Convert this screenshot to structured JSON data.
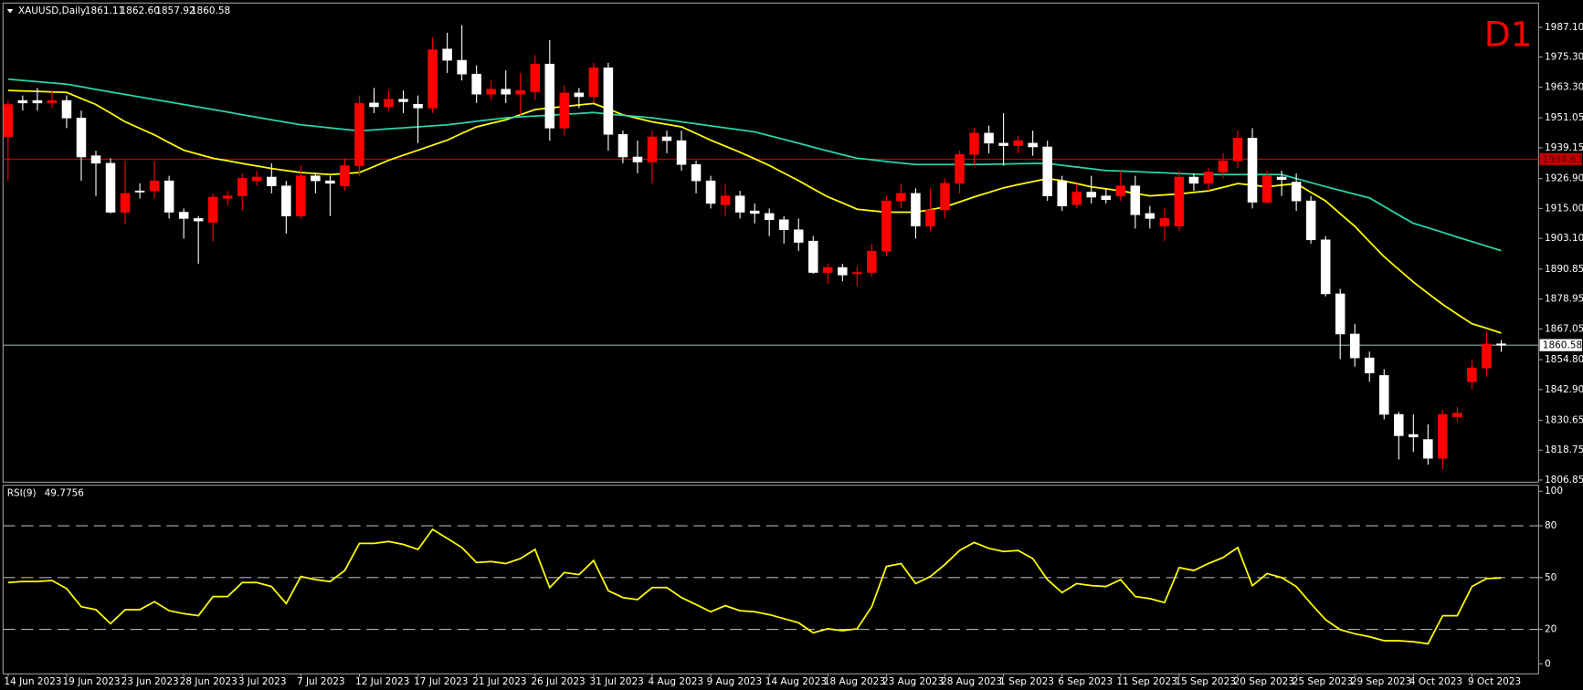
{
  "chart_data": [
    {
      "type": "candlestick",
      "title": "XAUUSD,Daily",
      "last_labels": [
        "1861.11",
        "1862.60",
        "1857.92",
        "1860.58"
      ],
      "timeframe_label": "D1",
      "categories": [
        "14 Jun 2023",
        null,
        null,
        null,
        "19 Jun 2023",
        null,
        null,
        null,
        "23 Jun 2023",
        null,
        null,
        null,
        "28 Jun 2023",
        null,
        null,
        null,
        "3 Jul 2023",
        null,
        null,
        null,
        "7 Jul 2023",
        null,
        null,
        null,
        "12 Jul 2023",
        null,
        null,
        null,
        "17 Jul 2023",
        null,
        null,
        null,
        "21 Jul 2023",
        null,
        null,
        null,
        "26 Jul 2023",
        null,
        null,
        null,
        "31 Jul 2023",
        null,
        null,
        null,
        "4 Aug 2023",
        null,
        null,
        null,
        "9 Aug 2023",
        null,
        null,
        null,
        "14 Aug 2023",
        null,
        null,
        null,
        "18 Aug 2023",
        null,
        null,
        null,
        "23 Aug 2023",
        null,
        null,
        null,
        "28 Aug 2023",
        null,
        null,
        null,
        "1 Sep 2023",
        null,
        null,
        null,
        "6 Sep 2023",
        null,
        null,
        null,
        "11 Sep 2023",
        null,
        null,
        null,
        "15 Sep 2023",
        null,
        null,
        null,
        "20 Sep 2023",
        null,
        null,
        null,
        "25 Sep 2023",
        null,
        null,
        null,
        "29 Sep 2023",
        null,
        null,
        null,
        "4 Oct 2023",
        null,
        null,
        null,
        "9 Oct 2023",
        null,
        null
      ],
      "open": [
        1943.5,
        1958,
        1958,
        1957,
        1958,
        1951,
        1936,
        1933,
        1913.5,
        1922,
        1922,
        1926,
        1913.5,
        1911,
        1909.5,
        1919,
        1920,
        1926,
        1927.5,
        1924,
        1912,
        1928,
        1926,
        1924,
        1932,
        1957,
        1955.5,
        1958.5,
        1956.5,
        1955,
        1978.5,
        1974,
        1968.5,
        1960.5,
        1962.5,
        1960.5,
        1961.5,
        1972.5,
        1947,
        1961,
        1959.5,
        1971,
        1944.5,
        1935.5,
        1933.5,
        1943.5,
        1942,
        1932.5,
        1926,
        1916.5,
        1920,
        1914,
        1913,
        1910.5,
        1906.5,
        1902,
        1889.5,
        1891.5,
        1889,
        1889.5,
        1898,
        1918,
        1921,
        1908,
        1914.5,
        1925,
        1936.5,
        1945,
        1941,
        1940,
        1941,
        1939.5,
        1926,
        1916.5,
        1921.5,
        1920,
        1920,
        1924,
        1913,
        1908,
        1908,
        1927.5,
        1925,
        1929.5,
        1934,
        1943,
        1917.5,
        1927.5,
        1925.5,
        1918,
        1902.5,
        1881,
        1865,
        1855.5,
        1848.5,
        1833,
        1825,
        1823,
        1815.5,
        1832,
        1846,
        1851.5,
        1861.11
      ],
      "high": [
        1958,
        1960,
        1963,
        1962,
        1960,
        1954,
        1938,
        1935,
        1934,
        1925,
        1934,
        1928,
        1915,
        1912,
        1921,
        1922,
        1929,
        1930,
        1933,
        1926,
        1932,
        1929,
        1928,
        1935,
        1960,
        1963,
        1962,
        1962,
        1960,
        1983,
        1985,
        1988,
        1972,
        1966,
        1970,
        1969,
        1976,
        1982,
        1964,
        1963,
        1973,
        1973,
        1946,
        1942,
        1946,
        1946,
        1946,
        1934,
        1928,
        1925,
        1922,
        1917,
        1915,
        1912,
        1911,
        1904,
        1893,
        1893,
        1892,
        1901,
        1920,
        1925,
        1923,
        1923,
        1927,
        1938,
        1947,
        1948,
        1953,
        1944,
        1946,
        1942,
        1928,
        1925,
        1928,
        1923,
        1930,
        1928,
        1916,
        1915,
        1930,
        1929,
        1931,
        1937,
        1946,
        1947,
        1930,
        1930,
        1929,
        1920,
        1904,
        1883,
        1869,
        1858,
        1851,
        1834,
        1833,
        1829,
        1835,
        1836,
        1855,
        1866,
        1862.6
      ],
      "low": [
        1926,
        1954,
        1954,
        1955,
        1947,
        1926,
        1920,
        1913,
        1909,
        1919,
        1919,
        1911,
        1903,
        1893,
        1902,
        1916,
        1914,
        1924,
        1921,
        1905,
        1911,
        1921,
        1912,
        1922,
        1928,
        1953,
        1954,
        1953,
        1941,
        1953,
        1969,
        1966,
        1957,
        1958,
        1957,
        1952,
        1958,
        1942,
        1944,
        1955,
        1957,
        1938,
        1933,
        1929,
        1925,
        1937,
        1930,
        1921,
        1915,
        1912,
        1911,
        1909,
        1904,
        1901,
        1898,
        1889,
        1885,
        1886,
        1884,
        1888,
        1896,
        1915,
        1903,
        1906,
        1911,
        1921,
        1932,
        1937,
        1932,
        1937,
        1936,
        1918,
        1914,
        1915,
        1917,
        1917,
        1918,
        1907,
        1907,
        1902,
        1906,
        1922,
        1922,
        1927,
        1931,
        1915,
        1917,
        1920,
        1914,
        1901,
        1880,
        1855,
        1852,
        1846,
        1831,
        1815,
        1818,
        1813,
        1811,
        1830,
        1843,
        1848,
        1857.92
      ],
      "close": [
        1956.4,
        1957,
        1957,
        1958,
        1951,
        1935.5,
        1933,
        1913.5,
        1921,
        1921.5,
        1926,
        1913.5,
        1911,
        1910,
        1919.5,
        1920,
        1927,
        1927.5,
        1924,
        1912,
        1928,
        1926,
        1925,
        1932,
        1956.8,
        1955.5,
        1958.5,
        1957.5,
        1955,
        1978.2,
        1974,
        1968.5,
        1960.5,
        1962.5,
        1960.5,
        1962,
        1972.5,
        1947,
        1961,
        1959.5,
        1971,
        1944.5,
        1935.5,
        1933.5,
        1943.5,
        1942,
        1932.5,
        1926,
        1917,
        1920,
        1913.5,
        1913,
        1910.5,
        1906.5,
        1901.5,
        1889.5,
        1891.5,
        1888.5,
        1889.5,
        1898,
        1918,
        1921,
        1908,
        1914.5,
        1925,
        1936.5,
        1945,
        1941,
        1940,
        1942,
        1939.5,
        1920,
        1916,
        1921.5,
        1919.5,
        1918.5,
        1924,
        1912.5,
        1911,
        1911,
        1927.5,
        1925,
        1929.5,
        1934,
        1943,
        1917.5,
        1928,
        1926.5,
        1918,
        1902.5,
        1881,
        1865,
        1855.5,
        1849.5,
        1833,
        1824.5,
        1824,
        1815.5,
        1833,
        1833.5,
        1851.5,
        1861,
        1860.58
      ],
      "up_color": "#ff0000",
      "down_color": "#ffffff",
      "overlays": [
        {
          "color": "#ffff00",
          "values": [
            1962.0,
            1961.8,
            1961.6,
            1961.4,
            1961.2,
            1958.8,
            1956.4,
            1953.0,
            1949.5,
            1946.9,
            1944.3,
            1941.2,
            1938.2,
            1936.6,
            1935.0,
            1934.0,
            1932.9,
            1931.9,
            1930.9,
            1930.1,
            1929.3,
            1928.9,
            1928.5,
            1928.9,
            1929.3,
            1931.7,
            1934.2,
            1936.2,
            1938.2,
            1940.2,
            1942.2,
            1944.9,
            1947.5,
            1948.9,
            1950.3,
            1952.3,
            1954.4,
            1955.0,
            1955.6,
            1956.2,
            1956.8,
            1954.6,
            1952.3,
            1950.9,
            1949.5,
            1948.5,
            1947.5,
            1944.9,
            1942.2,
            1939.8,
            1937.4,
            1934.8,
            1932.1,
            1929.1,
            1926.1,
            1922.8,
            1919.6,
            1917.2,
            1914.7,
            1914.1,
            1913.5,
            1913.5,
            1913.5,
            1914.5,
            1915.6,
            1917.6,
            1919.6,
            1921.4,
            1923.2,
            1924.5,
            1925.7,
            1926.9,
            1926.1,
            1924.9,
            1923.6,
            1922.8,
            1922.0,
            1921.0,
            1920.0,
            1920.4,
            1920.8,
            1921.4,
            1922.0,
            1923.4,
            1924.9,
            1924.3,
            1923.6,
            1924.3,
            1924.9,
            1921.4,
            1918.0,
            1912.9,
            1907.9,
            1901.8,
            1895.8,
            1890.7,
            1885.7,
            1881.2,
            1876.8,
            1872.9,
            1869.1,
            1867.3,
            1865.4
          ]
        },
        {
          "color": "#2ad4a8",
          "values": [
            1966.5,
            1966.0,
            1965.5,
            1965.0,
            1964.5,
            1963.5,
            1962.4,
            1961.4,
            1960.4,
            1959.4,
            1958.4,
            1957.4,
            1956.4,
            1955.4,
            1954.4,
            1953.4,
            1952.3,
            1951.3,
            1950.3,
            1949.3,
            1948.3,
            1947.7,
            1947.1,
            1946.5,
            1945.9,
            1946.3,
            1946.7,
            1947.1,
            1947.5,
            1947.9,
            1948.3,
            1949.0,
            1949.7,
            1950.4,
            1951.1,
            1951.5,
            1951.8,
            1952.1,
            1952.5,
            1952.8,
            1953.2,
            1952.6,
            1952.1,
            1951.6,
            1951.1,
            1950.3,
            1949.5,
            1948.7,
            1947.9,
            1947.1,
            1946.3,
            1945.5,
            1944.0,
            1942.5,
            1941.0,
            1939.4,
            1937.9,
            1936.4,
            1935.0,
            1934.4,
            1933.7,
            1933.1,
            1932.5,
            1932.5,
            1932.5,
            1932.5,
            1932.5,
            1932.6,
            1932.7,
            1932.8,
            1932.9,
            1932.9,
            1932.2,
            1931.5,
            1930.8,
            1930.1,
            1929.9,
            1929.7,
            1929.4,
            1929.2,
            1928.9,
            1928.7,
            1928.5,
            1928.5,
            1928.5,
            1928.5,
            1928.5,
            1928.5,
            1926.9,
            1925.3,
            1923.7,
            1922.2,
            1920.7,
            1919.2,
            1915.8,
            1912.4,
            1909.1,
            1907.3,
            1905.5,
            1903.6,
            1901.8,
            1900.0,
            1898.2
          ]
        }
      ],
      "hlines": [
        {
          "value": 1934.63,
          "color": "#c00000",
          "label_fill": "#c00000",
          "label_color": "#5a0000"
        },
        {
          "value": 1860.58,
          "color": "#8fa8a8",
          "label_fill": "#ffffff",
          "label_color": "#000000"
        }
      ],
      "ylim": [
        1806.0,
        1996.8
      ],
      "yticks": [
        {
          "value": 1987.1,
          "label": "1987.10"
        },
        {
          "value": 1975.3,
          "label": "1975.30"
        },
        {
          "value": 1963.3,
          "label": "1963.30"
        },
        1951.05,
        1939.15,
        {
          "value": 1926.9,
          "label": "1926.90"
        },
        {
          "value": 1915,
          "label": "1915.00"
        },
        {
          "value": 1903.1,
          "label": "1903.10"
        },
        1890.85,
        1878.95,
        1867.05,
        {
          "value": 1854.8,
          "label": "1854.80"
        },
        {
          "value": 1842.9,
          "label": "1842.90"
        },
        1830.65,
        1818.75,
        1806.85
      ]
    },
    {
      "type": "line",
      "title": "RSI(9)",
      "color": "#ffff00",
      "values": [
        47.1,
        47.7,
        47.7,
        48.3,
        43.6,
        33.1,
        31.4,
        23.3,
        31.4,
        31.4,
        36.0,
        30.8,
        29.1,
        27.9,
        39.0,
        39.0,
        47.1,
        47.1,
        44.8,
        34.9,
        50.6,
        48.8,
        47.7,
        54.1,
        69.8,
        69.8,
        70.9,
        69.2,
        66.3,
        77.9,
        72.7,
        67.4,
        58.7,
        59.3,
        58.1,
        61.0,
        66.3,
        44.2,
        52.9,
        51.7,
        59.9,
        42.4,
        38.4,
        37.2,
        44.2,
        44.2,
        38.4,
        34.3,
        30.2,
        33.7,
        30.8,
        30.2,
        28.5,
        26.2,
        23.8,
        18.0,
        20.3,
        19.2,
        20.3,
        33.1,
        56.4,
        58.1,
        46.5,
        50.6,
        57.6,
        65.7,
        70.3,
        66.9,
        65.1,
        65.7,
        61.0,
        48.8,
        41.3,
        46.5,
        45.3,
        44.8,
        48.8,
        39.0,
        37.8,
        35.5,
        55.8,
        54.1,
        58.1,
        61.6,
        67.4,
        45.3,
        52.3,
        50.0,
        44.8,
        34.9,
        25.6,
        19.8,
        17.4,
        15.7,
        13.4,
        13.4,
        12.8,
        11.6,
        27.9,
        27.9,
        44.8,
        49.4,
        49.7756
      ],
      "ylim": [
        -5.8,
        103.5
      ],
      "yticks": [
        0,
        20,
        50,
        80,
        100
      ],
      "levels": [
        20,
        50,
        80
      ]
    }
  ]
}
